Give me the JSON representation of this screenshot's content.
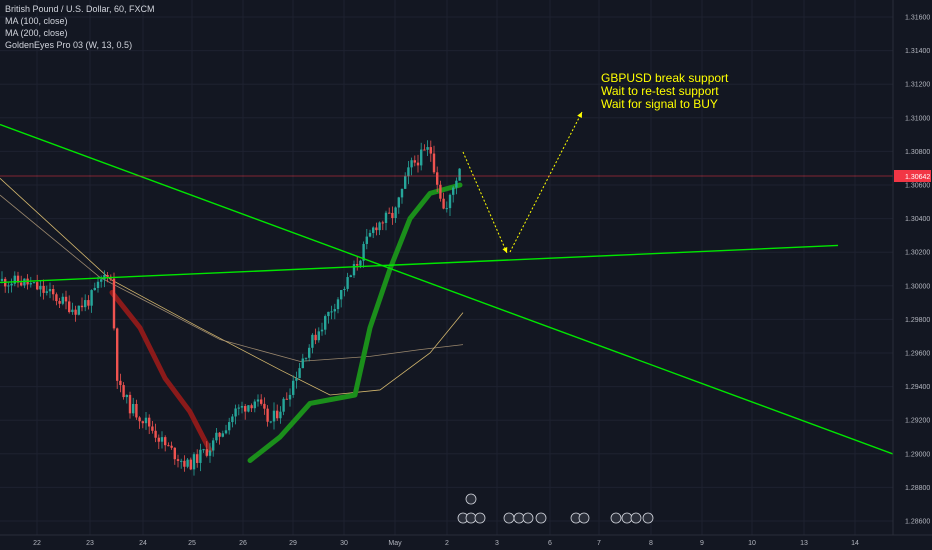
{
  "legend": {
    "symbol": "British Pound / U.S. Dollar, 60, FXCM",
    "ma100": "MA (100, close)",
    "ma200": "MA (200, close)",
    "indicator": "GoldenEyes Pro 03 (W, 13, 0.5)"
  },
  "annotation": {
    "line1": "GBPUSD break support",
    "line2": "Wait to re-test support",
    "line3": "Wait for signal to BUY"
  },
  "colors": {
    "background": "#131722",
    "grid": "#1e2230",
    "up_candle": "#26a69a",
    "down_candle": "#ef5350",
    "trendline": "#00e600",
    "ma100": "#b39b7a",
    "ma200": "#f5d27a",
    "indicator_bull": "#1b8f1b",
    "indicator_bear": "#8b1a1a",
    "annotation": "#ffff00",
    "price_line": "#f23645"
  },
  "chart_data": {
    "type": "candlestick",
    "title": "British Pound / U.S. Dollar, 60, FXCM",
    "y_ticks": [
      "1.31600",
      "1.31400",
      "1.31200",
      "1.31000",
      "1.30800",
      "1.30600",
      "1.30400",
      "1.30200",
      "1.30000",
      "1.29800",
      "1.29600",
      "1.29400",
      "1.29200",
      "1.29000",
      "1.28800",
      "1.28600"
    ],
    "x_ticks": [
      "22",
      "23",
      "24",
      "25",
      "26",
      "29",
      "30",
      "May",
      "2",
      "3",
      "6",
      "7",
      "8",
      "9",
      "10",
      "13",
      "14"
    ],
    "ylim": [
      1.2857,
      1.3168
    ],
    "last_price": "1.30642",
    "support_line": {
      "start": 1.3002,
      "end": 1.3024
    },
    "descending_trendline": {
      "start": 1.3096,
      "end": 1.2899
    },
    "ma100_start": 1.3064,
    "ma200_start": 1.3054,
    "price_path": [
      [
        0,
        1.3003
      ],
      [
        1,
        1.3002
      ],
      [
        2,
        1.2995
      ],
      [
        3,
        1.2986
      ],
      [
        4,
        1.2992
      ],
      [
        5,
        1.3011
      ],
      [
        6,
        1.294
      ],
      [
        7,
        1.2928
      ],
      [
        8,
        1.2918
      ],
      [
        9,
        1.2905
      ],
      [
        10,
        1.2893
      ],
      [
        11,
        1.2905
      ],
      [
        12,
        1.2925
      ],
      [
        13,
        1.2932
      ],
      [
        14,
        1.2918
      ],
      [
        15,
        1.2932
      ],
      [
        16,
        1.296
      ],
      [
        17,
        1.3005
      ],
      [
        18,
        1.3036
      ],
      [
        19,
        1.3043
      ],
      [
        20,
        1.3071
      ],
      [
        21,
        1.3082
      ],
      [
        22,
        1.3042
      ],
      [
        23,
        1.3076
      ]
    ]
  }
}
